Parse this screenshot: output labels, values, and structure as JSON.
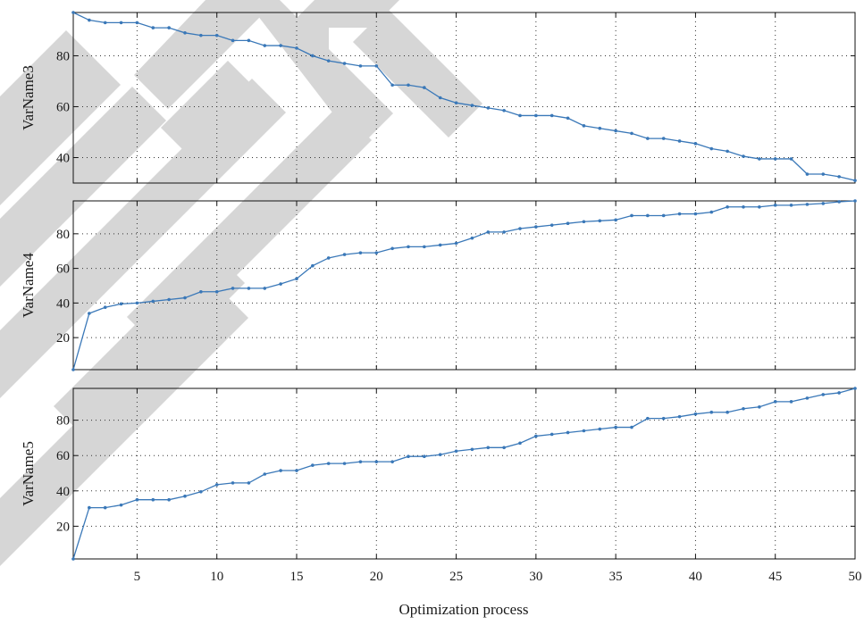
{
  "line_color": "#3a78b8",
  "chart_data": {
    "type": "line",
    "xlabel": "Optimization process",
    "xlim": [
      1,
      50
    ],
    "x_ticks": [
      5,
      10,
      15,
      20,
      25,
      30,
      35,
      40,
      45,
      50
    ],
    "x": [
      1,
      2,
      3,
      4,
      5,
      6,
      7,
      8,
      9,
      10,
      11,
      12,
      13,
      14,
      15,
      16,
      17,
      18,
      19,
      20,
      21,
      22,
      23,
      24,
      25,
      26,
      27,
      28,
      29,
      30,
      31,
      32,
      33,
      34,
      35,
      36,
      37,
      38,
      39,
      40,
      41,
      42,
      43,
      44,
      45,
      46,
      47,
      48,
      49,
      50
    ],
    "panels": [
      {
        "ylabel": "VarName3",
        "ylim": [
          30,
          97
        ],
        "y_ticks": [
          40,
          60,
          80
        ],
        "values": [
          97,
          94,
          93,
          93,
          93,
          91,
          91,
          89,
          88,
          88,
          86,
          86,
          84,
          84,
          83,
          80,
          78,
          77,
          76,
          76,
          68.5,
          68.5,
          67.5,
          63.5,
          61.5,
          60.5,
          59.5,
          58.5,
          56.5,
          56.5,
          56.5,
          55.5,
          52.5,
          51.5,
          50.5,
          49.5,
          47.5,
          47.5,
          46.5,
          45.5,
          43.5,
          42.5,
          40.5,
          39.5,
          39.5,
          39.5,
          33.5,
          33.5,
          32.5,
          31
        ]
      },
      {
        "ylabel": "VarName4",
        "ylim": [
          1.5,
          99
        ],
        "y_ticks": [
          20,
          40,
          60,
          80
        ],
        "values": [
          1.5,
          34,
          37.5,
          39.5,
          40,
          41,
          42,
          43,
          46.5,
          46.5,
          48.5,
          48.5,
          48.5,
          51,
          54,
          61.5,
          66,
          68,
          69,
          69,
          71.5,
          72.5,
          72.5,
          73.5,
          74.5,
          77.5,
          81,
          81,
          83,
          84,
          85,
          86,
          87,
          87.5,
          88,
          90.5,
          90.5,
          90.5,
          91.5,
          91.5,
          92.5,
          95.5,
          95.5,
          95.5,
          96.5,
          96.5,
          97,
          97.5,
          98.5,
          99
        ]
      },
      {
        "ylabel": "VarName5",
        "ylim": [
          1.5,
          98
        ],
        "y_ticks": [
          20,
          40,
          60,
          80
        ],
        "values": [
          1.5,
          30.5,
          30.5,
          32,
          35,
          35,
          35,
          37,
          39.5,
          43.5,
          44.5,
          44.5,
          49.5,
          51.5,
          51.5,
          54.5,
          55.5,
          55.5,
          56.5,
          56.5,
          56.5,
          59.5,
          59.5,
          60.5,
          62.5,
          63.5,
          64.5,
          64.5,
          67,
          71,
          72,
          73,
          74,
          75,
          76,
          76,
          81,
          81,
          82,
          83.5,
          84.5,
          84.5,
          86.5,
          87.5,
          90.5,
          90.5,
          92.5,
          94.5,
          95.5,
          98
        ]
      }
    ]
  }
}
